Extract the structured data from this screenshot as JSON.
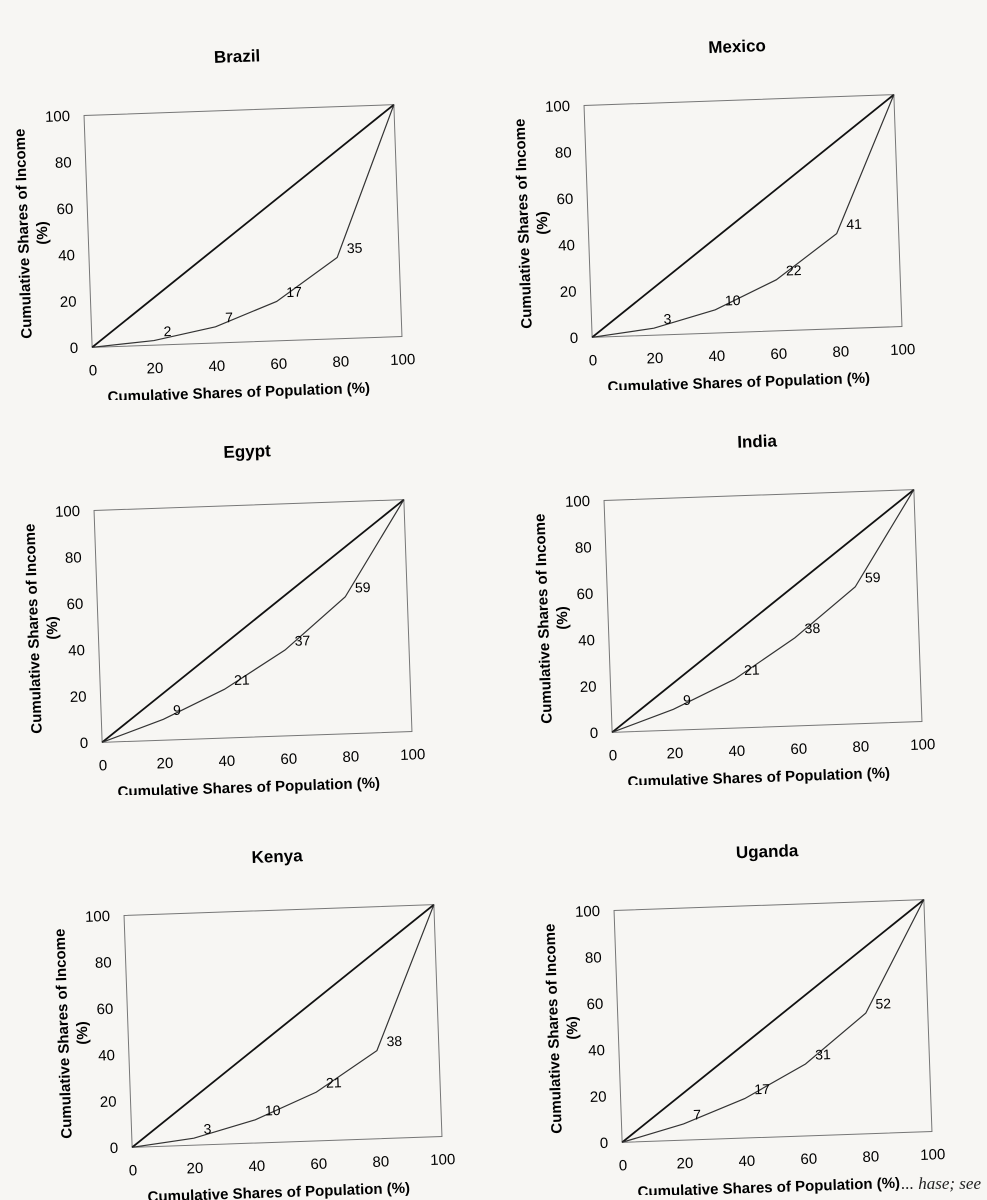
{
  "footnote": "... hase; see",
  "chart_data": [
    {
      "type": "line",
      "title": "Brazil",
      "xlabel": "Cumulative Shares of Population (%)",
      "ylabel": "Cumulative Shares of Income (%)",
      "xlim": [
        0,
        100
      ],
      "ylim": [
        0,
        100
      ],
      "xticks": [
        "0",
        "20",
        "40",
        "60",
        "80",
        "100"
      ],
      "yticks": [
        "0",
        "20",
        "40",
        "60",
        "80",
        "100"
      ],
      "series": [
        {
          "x": [
            0,
            100
          ],
          "y": [
            0,
            100
          ]
        },
        {
          "x": [
            0,
            20,
            40,
            60,
            80,
            100
          ],
          "y": [
            0,
            2,
            7,
            17,
            35,
            100
          ]
        }
      ],
      "point_labels": [
        "2",
        "7",
        "17",
        "35"
      ]
    },
    {
      "type": "line",
      "title": "Mexico",
      "xlabel": "Cumulative Shares of Population (%)",
      "ylabel": "Cumulative Shares of Income (%)",
      "xlim": [
        0,
        100
      ],
      "ylim": [
        0,
        100
      ],
      "xticks": [
        "0",
        "20",
        "40",
        "60",
        "80",
        "100"
      ],
      "yticks": [
        "0",
        "20",
        "40",
        "60",
        "80",
        "100"
      ],
      "series": [
        {
          "x": [
            0,
            100
          ],
          "y": [
            0,
            100
          ]
        },
        {
          "x": [
            0,
            20,
            40,
            60,
            80,
            100
          ],
          "y": [
            0,
            3,
            10,
            22,
            41,
            100
          ]
        }
      ],
      "point_labels": [
        "3",
        "10",
        "22",
        "41"
      ]
    },
    {
      "type": "line",
      "title": "Egypt",
      "xlabel": "Cumulative Shares of Population (%)",
      "ylabel": "Cumulative Shares of Income (%)",
      "xlim": [
        0,
        100
      ],
      "ylim": [
        0,
        100
      ],
      "xticks": [
        "0",
        "20",
        "40",
        "60",
        "80",
        "100"
      ],
      "yticks": [
        "0",
        "20",
        "40",
        "60",
        "80",
        "100"
      ],
      "series": [
        {
          "x": [
            0,
            100
          ],
          "y": [
            0,
            100
          ]
        },
        {
          "x": [
            0,
            20,
            40,
            60,
            80,
            100
          ],
          "y": [
            0,
            9,
            21,
            37,
            59,
            100
          ]
        }
      ],
      "point_labels": [
        "9",
        "21",
        "37",
        "59"
      ]
    },
    {
      "type": "line",
      "title": "India",
      "xlabel": "Cumulative Shares of Population (%)",
      "ylabel": "Cumulative Shares of Income (%)",
      "xlim": [
        0,
        100
      ],
      "ylim": [
        0,
        100
      ],
      "xticks": [
        "0",
        "20",
        "40",
        "60",
        "80",
        "100"
      ],
      "yticks": [
        "0",
        "20",
        "40",
        "60",
        "80",
        "100"
      ],
      "series": [
        {
          "x": [
            0,
            100
          ],
          "y": [
            0,
            100
          ]
        },
        {
          "x": [
            0,
            20,
            40,
            60,
            80,
            100
          ],
          "y": [
            0,
            9,
            21,
            38,
            59,
            100
          ]
        }
      ],
      "point_labels": [
        "9",
        "21",
        "38",
        "59"
      ]
    },
    {
      "type": "line",
      "title": "Kenya",
      "xlabel": "Cumulative Shares of Population (%)",
      "ylabel": "Cumulative Shares of Income (%)",
      "xlim": [
        0,
        100
      ],
      "ylim": [
        0,
        100
      ],
      "xticks": [
        "0",
        "20",
        "40",
        "60",
        "80",
        "100"
      ],
      "yticks": [
        "0",
        "20",
        "40",
        "60",
        "80",
        "100"
      ],
      "series": [
        {
          "x": [
            0,
            100
          ],
          "y": [
            0,
            100
          ]
        },
        {
          "x": [
            0,
            20,
            40,
            60,
            80,
            100
          ],
          "y": [
            0,
            3,
            10,
            21,
            38,
            100
          ]
        }
      ],
      "point_labels": [
        "3",
        "10",
        "21",
        "38"
      ]
    },
    {
      "type": "line",
      "title": "Uganda",
      "xlabel": "Cumulative Shares of Population (%)",
      "ylabel": "Cumulative Shares of Income (%)",
      "xlim": [
        0,
        100
      ],
      "ylim": [
        0,
        100
      ],
      "xticks": [
        "0",
        "20",
        "40",
        "60",
        "80",
        "100"
      ],
      "yticks": [
        "0",
        "20",
        "40",
        "60",
        "80",
        "100"
      ],
      "series": [
        {
          "x": [
            0,
            100
          ],
          "y": [
            0,
            100
          ]
        },
        {
          "x": [
            0,
            20,
            40,
            60,
            80,
            100
          ],
          "y": [
            0,
            7,
            17,
            31,
            52,
            100
          ]
        }
      ],
      "point_labels": [
        "7",
        "17",
        "31",
        "52"
      ]
    }
  ]
}
